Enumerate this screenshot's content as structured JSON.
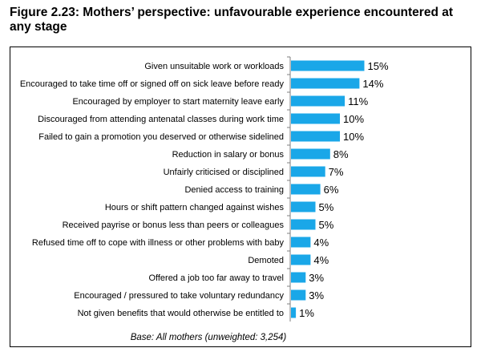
{
  "figure": {
    "title": "Figure 2.23: Mothers’ perspective: unfavourable experience encountered at any stage"
  },
  "chart_data": {
    "type": "bar",
    "orientation": "horizontal",
    "bar_color": "#1aa7e8",
    "categories": [
      "Given unsuitable work or workloads",
      "Encouraged to take time off or signed off on sick leave before ready",
      "Encouraged by employer to start maternity leave early",
      "Discouraged from attending antenatal classes during work time",
      "Failed to gain a promotion you deserved or otherwise sidelined",
      "Reduction in salary or bonus",
      "Unfairly criticised or disciplined",
      "Denied access to training",
      "Hours or shift pattern changed against wishes",
      "Received payrise or bonus less than peers or colleagues",
      "Refused time off to cope with illness or other problems with baby",
      "Demoted",
      "Offered a job too far away to travel",
      "Encouraged / pressured to take voluntary redundancy",
      "Not given benefits that would otherwise be entitled to"
    ],
    "values": [
      15,
      14,
      11,
      10,
      10,
      8,
      7,
      6,
      5,
      5,
      4,
      4,
      3,
      3,
      1
    ],
    "value_labels": [
      "15%",
      "14%",
      "11%",
      "10%",
      "10%",
      "8%",
      "7%",
      "6%",
      "5%",
      "5%",
      "4%",
      "4%",
      "3%",
      "3%",
      "1%"
    ],
    "note": "Base: All mothers (unweighted: 3,254)"
  }
}
